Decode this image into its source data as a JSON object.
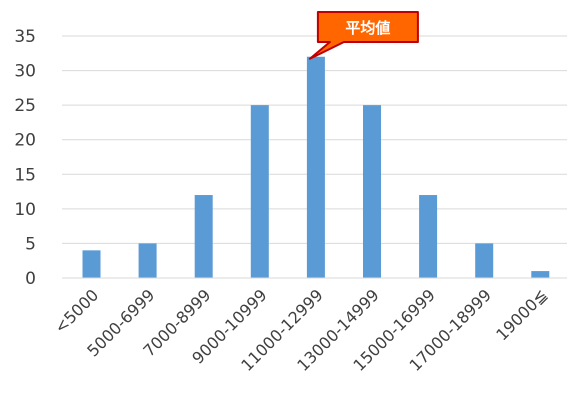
{
  "chart_data": {
    "type": "bar",
    "categories": [
      "<5000",
      "5000-6999",
      "7000-8999",
      "9000-10999",
      "11000-12999",
      "13000-14999",
      "15000-16999",
      "17000-18999",
      "19000≦"
    ],
    "values": [
      4,
      5,
      12,
      25,
      32,
      25,
      12,
      5,
      1
    ],
    "ylim": [
      0,
      35
    ],
    "yticks": [
      0,
      5,
      10,
      15,
      20,
      25,
      30,
      35
    ],
    "grid": true,
    "bar_color": "#5B9BD5",
    "annotations": [
      {
        "text": "平均値",
        "category": "11000-12999",
        "fill": "#FF6600",
        "border": "#C00000",
        "text_color": "#FFFFFF"
      }
    ]
  }
}
